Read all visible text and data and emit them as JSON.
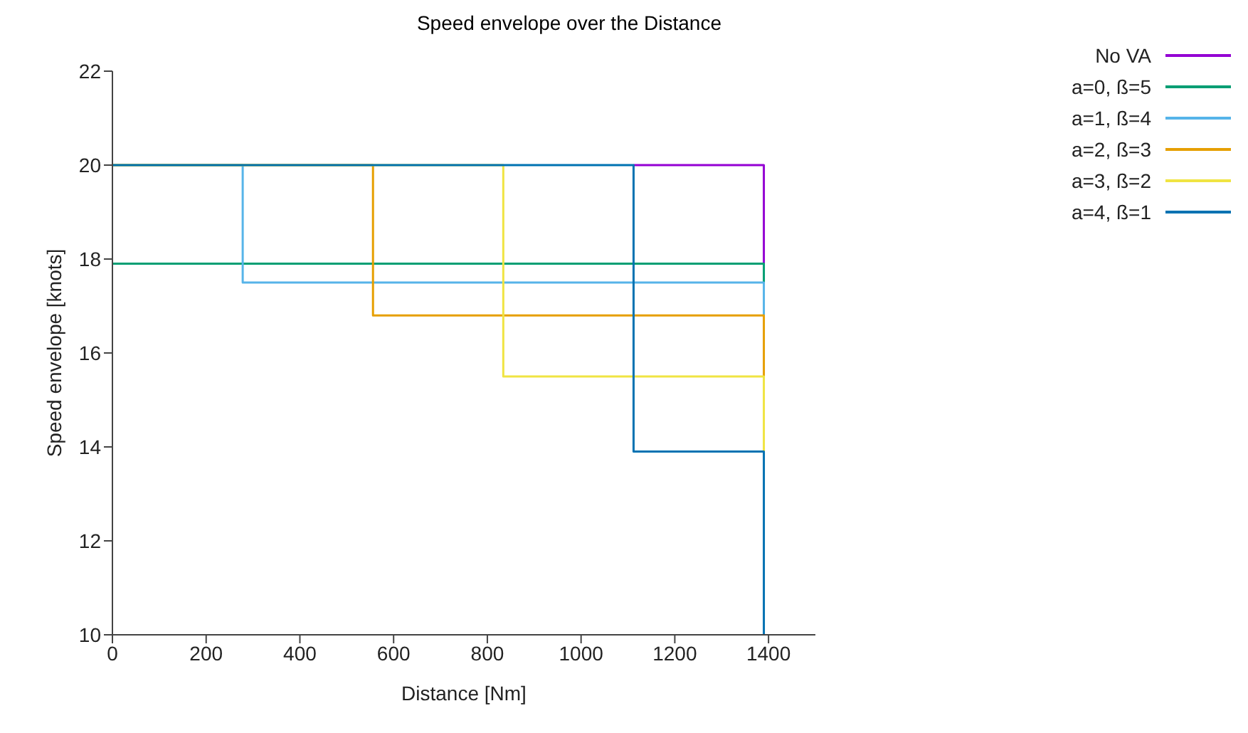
{
  "chart_data": {
    "type": "line",
    "title": "Speed envelope over the Distance",
    "xlabel": "Distance [Nm]",
    "ylabel": "Speed envelope [knots]",
    "xlim": [
      0,
      1500
    ],
    "xticks": [
      0,
      200,
      400,
      600,
      800,
      1000,
      1200,
      1400
    ],
    "ylim": [
      10,
      22
    ],
    "yticks": [
      10,
      12,
      14,
      16,
      18,
      20,
      22
    ],
    "grid": false,
    "legend": "top right",
    "marker": "none",
    "line_style": "solid",
    "series": [
      {
        "name": "No VA",
        "color": "#9400d3",
        "x": [
          1112,
          1390,
          1390
        ],
        "values": [
          20,
          20,
          17.9
        ]
      },
      {
        "name": "a=0, ß=5",
        "color": "#009e73",
        "x": [
          0,
          1390,
          1390
        ],
        "values": [
          17.9,
          17.9,
          17.5
        ]
      },
      {
        "name": "a=1, ß=4",
        "color": "#56b4e9",
        "x": [
          0,
          278,
          278,
          1390,
          1390
        ],
        "values": [
          20,
          20,
          17.5,
          17.5,
          16.8
        ]
      },
      {
        "name": "a=2, ß=3",
        "color": "#e69f00",
        "x": [
          0,
          556,
          556,
          1390,
          1390
        ],
        "values": [
          20,
          20,
          16.8,
          16.8,
          15.5
        ]
      },
      {
        "name": "a=3, ß=2",
        "color": "#f0e442",
        "x": [
          0,
          834,
          834,
          1390,
          1390
        ],
        "values": [
          20,
          20,
          15.5,
          15.5,
          13.9
        ]
      },
      {
        "name": "a=4, ß=1",
        "color": "#0072b2",
        "x": [
          0,
          1112,
          1112,
          1390,
          1390
        ],
        "values": [
          20,
          20,
          13.9,
          13.9,
          10
        ]
      }
    ]
  }
}
